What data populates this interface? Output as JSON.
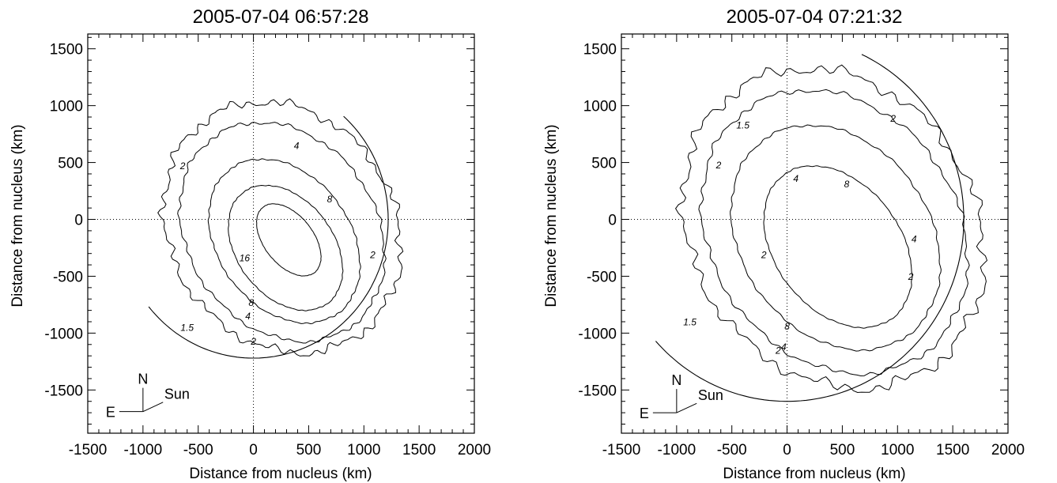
{
  "chart_data": [
    {
      "type": "contour",
      "title": "2005-07-04 06:57:28",
      "xlabel": "Distance from nucleus (km)",
      "ylabel": "Distance from nucleus (km)",
      "xlim": [
        -1500,
        2000
      ],
      "ylim": [
        -1880,
        1630
      ],
      "xticks": [
        -1500,
        -1000,
        -500,
        0,
        500,
        1000,
        1500,
        2000
      ],
      "yticks": [
        -1500,
        -1000,
        -500,
        0,
        500,
        1000,
        1500
      ],
      "xtick_labels": [
        "-1500",
        "-1000",
        "-500",
        "0",
        "500",
        "1000",
        "1500",
        "2000"
      ],
      "ytick_labels": [
        "-1500",
        "-1000",
        "-500",
        "0",
        "500",
        "1000",
        "1500"
      ],
      "crosshair": {
        "x": 0,
        "y": 0,
        "style": "dotted"
      },
      "contours": [
        {
          "level": "1.5",
          "center": [
            260,
            -70
          ],
          "rx": 1000,
          "ry": 1170,
          "angle": 40,
          "jagged": 1
        },
        {
          "level": "2",
          "center": [
            260,
            -110
          ],
          "rx": 840,
          "ry": 1040,
          "angle": 40,
          "jagged": 0.5
        },
        {
          "level": "4",
          "center": [
            280,
            -190
          ],
          "rx": 590,
          "ry": 800,
          "angle": 40,
          "jagged": 0.3
        },
        {
          "level": "8",
          "center": [
            290,
            -250
          ],
          "rx": 430,
          "ry": 620,
          "angle": 40,
          "jagged": 0.2
        },
        {
          "level": "16",
          "center": [
            320,
            -180
          ],
          "rx": 220,
          "ry": 370,
          "angle": 40,
          "jagged": 0.15
        }
      ],
      "contour_labels": [
        {
          "text": "1.5",
          "x": -600,
          "y": -980
        },
        {
          "text": "2",
          "x": 0,
          "y": -1100
        },
        {
          "text": "2",
          "x": 1080,
          "y": -340
        },
        {
          "text": "2",
          "x": -640,
          "y": 440
        },
        {
          "text": "4",
          "x": -50,
          "y": -880
        },
        {
          "text": "4",
          "x": 390,
          "y": 620
        },
        {
          "text": "8",
          "x": -20,
          "y": -760
        },
        {
          "text": "8",
          "x": 690,
          "y": 150
        },
        {
          "text": "16",
          "x": -80,
          "y": -370
        }
      ],
      "boundary_arc": {
        "radius": 1220,
        "start_deg": 48,
        "end_deg": 219
      },
      "compass": {
        "north": "N",
        "east": "E",
        "sun": "Sun",
        "sun_angle_deg": 25
      },
      "compass_pos": [
        -1000,
        -1690
      ]
    },
    {
      "type": "contour",
      "title": "2005-07-04 07:21:32",
      "xlabel": "Distance from nucleus (km)",
      "ylabel": "Distance from nucleus (km)",
      "xlim": [
        -1500,
        2000
      ],
      "ylim": [
        -1880,
        1630
      ],
      "xticks": [
        -1500,
        -1000,
        -500,
        0,
        500,
        1000,
        1500,
        2000
      ],
      "yticks": [
        -1500,
        -1000,
        -500,
        0,
        500,
        1000,
        1500
      ],
      "xtick_labels": [
        "-1500",
        "-1000",
        "-500",
        "0",
        "500",
        "1000",
        "1500",
        "2000"
      ],
      "ytick_labels": [
        "-1500",
        "-1000",
        "-500",
        "0",
        "500",
        "1000",
        "1500"
      ],
      "crosshair": {
        "x": 0,
        "y": 0,
        "style": "dotted"
      },
      "contours": [
        {
          "level": "1.5",
          "center": [
            420,
            -80
          ],
          "rx": 1260,
          "ry": 1500,
          "angle": 40,
          "jagged": 1
        },
        {
          "level": "2",
          "center": [
            430,
            -110
          ],
          "rx": 1100,
          "ry": 1340,
          "angle": 40,
          "jagged": 0.5
        },
        {
          "level": "4",
          "center": [
            440,
            -160
          ],
          "rx": 840,
          "ry": 1080,
          "angle": 40,
          "jagged": 0.3
        },
        {
          "level": "8",
          "center": [
            460,
            -240
          ],
          "rx": 560,
          "ry": 800,
          "angle": 40,
          "jagged": 0.2
        }
      ],
      "contour_labels": [
        {
          "text": "1.5",
          "x": -880,
          "y": -930
        },
        {
          "text": "1.5",
          "x": -400,
          "y": 800
        },
        {
          "text": "2",
          "x": -620,
          "y": 450
        },
        {
          "text": "2",
          "x": -210,
          "y": -340
        },
        {
          "text": "2",
          "x": -80,
          "y": -1180
        },
        {
          "text": "2",
          "x": 1120,
          "y": -530
        },
        {
          "text": "2",
          "x": 960,
          "y": 860
        },
        {
          "text": "4",
          "x": 80,
          "y": 330
        },
        {
          "text": "4",
          "x": -30,
          "y": -1150
        },
        {
          "text": "4",
          "x": 1150,
          "y": -200
        },
        {
          "text": "8",
          "x": 0,
          "y": -970
        },
        {
          "text": "8",
          "x": 540,
          "y": 280
        }
      ],
      "boundary_arc": {
        "radius": 1600,
        "start_deg": 65,
        "end_deg": 222
      },
      "compass": {
        "north": "N",
        "east": "E",
        "sun": "Sun",
        "sun_angle_deg": 25
      },
      "compass_pos": [
        -1000,
        -1700
      ]
    }
  ]
}
